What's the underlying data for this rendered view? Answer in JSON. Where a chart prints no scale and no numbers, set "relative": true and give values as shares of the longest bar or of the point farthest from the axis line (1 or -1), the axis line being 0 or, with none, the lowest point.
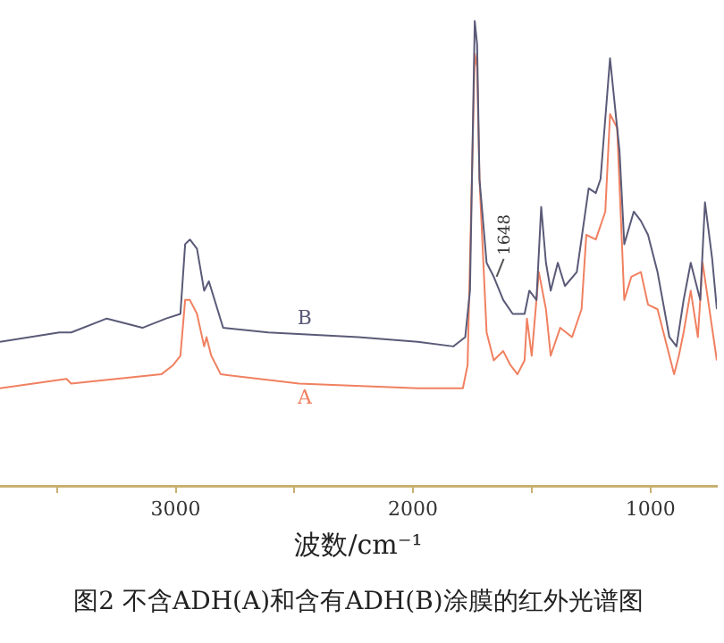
{
  "chart_data": {
    "type": "line",
    "title": "图2 不含ADH(A)和含有ADH(B)涂膜的红外光谱图",
    "xlabel": "波数/cm⁻¹",
    "relative": true,
    "xlim": [
      3740,
      720
    ],
    "xticks": [
      {
        "value": 3500,
        "label": null
      },
      3000,
      {
        "value": 2500,
        "label": null
      },
      2000,
      {
        "value": 1500,
        "label": null
      },
      1000
    ],
    "grid": false,
    "legend": false,
    "marker": "none",
    "line_style": "solid",
    "annotations": [
      {
        "text": "1648",
        "x": 1648,
        "y": 0.45
      }
    ],
    "series": [
      {
        "name": "B",
        "color": "#5a5a78",
        "x": [
          3740,
          3490,
          3440,
          3290,
          3140,
          3040,
          2980,
          2960,
          2940,
          2910,
          2880,
          2860,
          2830,
          2800,
          2610,
          2230,
          1980,
          1830,
          1780,
          1760,
          1740,
          1730,
          1720,
          1690,
          1660,
          1620,
          1580,
          1530,
          1510,
          1480,
          1460,
          1440,
          1420,
          1390,
          1360,
          1310,
          1260,
          1230,
          1210,
          1170,
          1130,
          1110,
          1070,
          1040,
          1010,
          970,
          920,
          890,
          860,
          830,
          800,
          790,
          770,
          740,
          720
        ],
        "values": [
          0.31,
          0.33,
          0.33,
          0.36,
          0.34,
          0.36,
          0.37,
          0.52,
          0.53,
          0.51,
          0.42,
          0.44,
          0.39,
          0.34,
          0.33,
          0.32,
          0.31,
          0.3,
          0.32,
          0.42,
          1.0,
          0.95,
          0.66,
          0.48,
          0.45,
          0.4,
          0.37,
          0.37,
          0.42,
          0.4,
          0.6,
          0.48,
          0.42,
          0.48,
          0.43,
          0.46,
          0.64,
          0.63,
          0.66,
          0.92,
          0.72,
          0.52,
          0.59,
          0.57,
          0.54,
          0.46,
          0.32,
          0.3,
          0.4,
          0.48,
          0.42,
          0.4,
          0.61,
          0.49,
          0.38
        ]
      },
      {
        "name": "A",
        "color": "#f08060",
        "x": [
          3740,
          3460,
          3440,
          3060,
          3010,
          2980,
          2960,
          2940,
          2910,
          2880,
          2870,
          2850,
          2810,
          2480,
          1980,
          1790,
          1770,
          1740,
          1730,
          1720,
          1690,
          1660,
          1620,
          1590,
          1560,
          1530,
          1520,
          1500,
          1470,
          1440,
          1420,
          1380,
          1330,
          1290,
          1270,
          1230,
          1190,
          1170,
          1140,
          1110,
          1080,
          1040,
          1010,
          970,
          900,
          880,
          860,
          830,
          800,
          780,
          760,
          720
        ],
        "values": [
          0.21,
          0.23,
          0.22,
          0.24,
          0.26,
          0.28,
          0.4,
          0.4,
          0.37,
          0.3,
          0.32,
          0.28,
          0.24,
          0.22,
          0.21,
          0.21,
          0.26,
          0.93,
          0.9,
          0.66,
          0.33,
          0.27,
          0.29,
          0.26,
          0.24,
          0.27,
          0.36,
          0.28,
          0.46,
          0.38,
          0.28,
          0.34,
          0.32,
          0.38,
          0.54,
          0.53,
          0.59,
          0.8,
          0.77,
          0.4,
          0.45,
          0.46,
          0.39,
          0.38,
          0.24,
          0.28,
          0.33,
          0.42,
          0.32,
          0.48,
          0.41,
          0.27
        ]
      }
    ]
  }
}
